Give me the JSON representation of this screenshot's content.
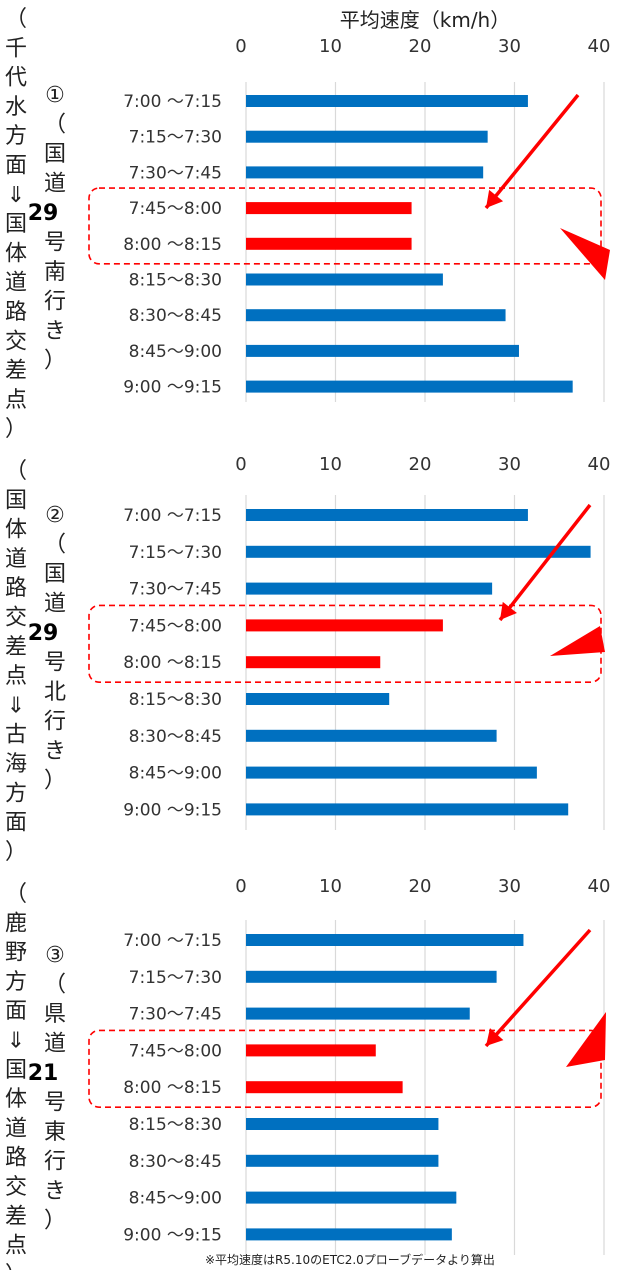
{
  "x_axis_title": "平均速度（km/h）",
  "footnote": "※平均速度はR5.10のETC2.0プローブデータより算出",
  "colors": {
    "normal": "#0070c0",
    "highlight": "#ff0000",
    "box": "#ff0000",
    "arrow": "#ff0000",
    "grid": "#d9d9d9"
  },
  "chart_data": [
    {
      "type": "bar",
      "orientation": "horizontal",
      "panel_label": [
        "（",
        "千",
        "代",
        "水",
        "方",
        "面",
        "⇓",
        "国",
        "体",
        "道",
        "路",
        "交",
        "差",
        "点",
        "）"
      ],
      "route_label": [
        "①",
        "（",
        "国",
        "道",
        "29",
        "号",
        "南",
        "行",
        "き",
        "）"
      ],
      "categories": [
        "7:00 ～7:15",
        "7:15～7:30",
        "7:30～7:45",
        "7:45～8:00",
        "8:00 ～8:15",
        "8:15～8:30",
        "8:30～8:45",
        "8:45～9:00",
        "9:00 ～9:15"
      ],
      "values": [
        31.5,
        27,
        26.5,
        18.5,
        18.5,
        22,
        29,
        30.5,
        36.5
      ],
      "highlighted": [
        3,
        4
      ],
      "xlim": [
        0,
        40
      ],
      "xticks": [
        "0",
        "10",
        "20",
        "30",
        "40"
      ],
      "grid": true
    },
    {
      "type": "bar",
      "orientation": "horizontal",
      "panel_label": [
        "（",
        "国",
        "体",
        "道",
        "路",
        "交",
        "差",
        "点",
        "⇓",
        "古",
        "海",
        "方",
        "面",
        "）"
      ],
      "route_label": [
        "②",
        "（",
        "国",
        "道",
        "29",
        "号",
        "北",
        "行",
        "き",
        "）"
      ],
      "categories": [
        "7:00 ～7:15",
        "7:15～7:30",
        "7:30～7:45",
        "7:45～8:00",
        "8:00 ～8:15",
        "8:15～8:30",
        "8:30～8:45",
        "8:45～9:00",
        "9:00 ～9:15"
      ],
      "values": [
        31.5,
        38.5,
        27.5,
        22,
        15,
        16,
        28,
        32.5,
        36
      ],
      "highlighted": [
        3,
        4
      ],
      "xlim": [
        0,
        40
      ],
      "xticks": [
        "0",
        "10",
        "20",
        "30",
        "40"
      ],
      "grid": true
    },
    {
      "type": "bar",
      "orientation": "horizontal",
      "panel_label": [
        "（",
        "鹿",
        "野",
        "方",
        "面",
        "⇓",
        "国",
        "体",
        "道",
        "路",
        "交",
        "差",
        "点",
        "）"
      ],
      "route_label": [
        "③",
        "（",
        "県",
        "道",
        "21",
        "号",
        "東",
        "行",
        "き",
        "）"
      ],
      "categories": [
        "7:00 ～7:15",
        "7:15～7:30",
        "7:30～7:45",
        "7:45～8:00",
        "8:00 ～8:15",
        "8:15～8:30",
        "8:30～8:45",
        "8:45～9:00",
        "9:00 ～9:15"
      ],
      "values": [
        31,
        28,
        25,
        14.5,
        17.5,
        21.5,
        21.5,
        23.5,
        23
      ],
      "highlighted": [
        3,
        4
      ],
      "xlim": [
        0,
        40
      ],
      "xticks": [
        "0",
        "10",
        "20",
        "30",
        "40"
      ],
      "grid": true
    }
  ]
}
